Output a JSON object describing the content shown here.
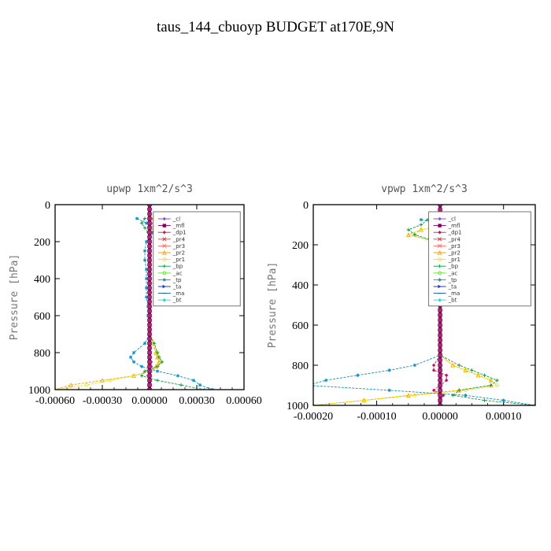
{
  "figure": {
    "title": "taus_144_cbuoyp  BUDGET at170E,9N"
  },
  "colors": {
    "_cl": "#8a4fd0",
    "_mfl": "#800060",
    "_dp1": "#c0105a",
    "_pr4": "#e03030",
    "_pr3": "#ff6666",
    "_pr2": "#f0a000",
    "_pr1": "#f0e000",
    "_bp": "#00a040",
    "_ac": "#60e030",
    "_tp": "#1090c0",
    "_ta": "#2040d0",
    "_ma": "#1050a0",
    "_bt": "#00e0e0"
  },
  "chart_data": [
    {
      "type": "line",
      "title": "upwp   1xm^2/s^3",
      "xlabel": "",
      "ylabel": "Pressure [hPa]",
      "xlim": [
        -0.0006,
        0.0006
      ],
      "ylim": [
        1000,
        0
      ],
      "xticks": [
        "-0.00060",
        "-0.00030",
        "0.00000",
        "0.00030",
        "0.00060"
      ],
      "xtick_values": [
        -0.0006,
        -0.0003,
        0,
        0.0003,
        0.0006
      ],
      "yticks": [
        "0",
        "200",
        "400",
        "600",
        "800",
        "1000"
      ],
      "ytick_values": [
        0,
        200,
        400,
        600,
        800,
        1000
      ],
      "grid": false,
      "legend_position": "top-right",
      "pressure": [
        75,
        100,
        125,
        150,
        200,
        250,
        300,
        350,
        400,
        450,
        500,
        550,
        600,
        650,
        700,
        750,
        800,
        825,
        850,
        875,
        900,
        925,
        950,
        975,
        1000
      ],
      "series": [
        {
          "name": "_cl",
          "values": [
            0,
            0,
            0,
            0,
            0,
            0,
            0,
            0,
            0,
            0,
            0,
            0,
            0,
            0,
            0,
            0,
            0,
            0,
            0,
            0,
            0,
            0,
            0,
            0,
            0
          ]
        },
        {
          "name": "_mfl",
          "values": [
            0,
            0,
            0,
            0,
            0,
            0,
            0,
            0,
            0,
            0,
            0,
            0,
            0,
            0,
            0,
            0,
            0,
            0,
            0,
            0,
            0,
            0,
            0,
            0,
            0
          ]
        },
        {
          "name": "_dp1",
          "values": [
            1e-05,
            1e-05,
            0,
            0,
            0,
            0,
            0,
            0,
            0,
            0,
            0,
            0,
            0,
            0,
            0,
            0,
            0,
            0,
            1e-05,
            1e-05,
            0,
            -1e-05,
            0,
            0,
            0
          ]
        },
        {
          "name": "_pr4",
          "values": [
            0,
            0,
            0,
            0,
            0,
            0,
            0,
            0,
            0,
            0,
            0,
            0,
            0,
            0,
            0,
            0,
            0,
            0,
            0,
            0,
            0,
            0,
            0,
            0,
            0
          ]
        },
        {
          "name": "_pr3",
          "values": [
            0,
            0,
            0,
            0,
            0,
            0,
            0,
            0,
            0,
            0,
            0,
            0,
            0,
            0,
            0,
            0,
            0,
            0,
            0,
            0,
            0,
            0,
            0,
            0,
            0
          ]
        },
        {
          "name": "_pr2",
          "values": [
            3e-05,
            4e-05,
            2e-05,
            1e-05,
            0,
            0,
            0,
            0,
            0,
            0,
            0,
            0,
            0,
            0,
            0,
            2e-05,
            4e-05,
            5e-05,
            6e-05,
            4e-05,
            0,
            -0.0001,
            -0.0003,
            -0.0005,
            -0.0006
          ]
        },
        {
          "name": "_pr1",
          "values": [
            3e-05,
            4e-05,
            2e-05,
            1e-05,
            0,
            0,
            0,
            0,
            0,
            0,
            0,
            0,
            0,
            0,
            0,
            2e-05,
            5e-05,
            6e-05,
            7e-05,
            5e-05,
            1e-05,
            -0.0001,
            -0.00025,
            -0.0004,
            -0.0006
          ]
        },
        {
          "name": "_bp",
          "values": [
            -3e-05,
            -5e-05,
            -3e-05,
            -1e-05,
            0,
            0,
            0,
            0,
            0,
            0,
            0,
            0,
            0,
            0,
            0,
            3e-05,
            5e-05,
            6e-05,
            8e-05,
            5e-05,
            -3e-05,
            -5e-05,
            5e-05,
            0.0002,
            0.00035
          ]
        },
        {
          "name": "_ac",
          "values": [
            0,
            0,
            0,
            0,
            0,
            0,
            0,
            0,
            0,
            0,
            0,
            0,
            0,
            0,
            0,
            0,
            0,
            0,
            0,
            0,
            0,
            0,
            0,
            0,
            0
          ]
        },
        {
          "name": "_tp",
          "values": [
            -8e-05,
            -2e-05,
            8e-05,
            2e-05,
            -2e-05,
            -3e-05,
            -3e-05,
            -2e-05,
            -2e-05,
            -2e-05,
            -2e-05,
            -1e-05,
            -1e-05,
            0,
            0,
            -3e-05,
            -0.0001,
            -0.00012,
            -0.0001,
            -5e-05,
            5e-05,
            0.00018,
            0.00028,
            0.00032,
            0.0004
          ]
        },
        {
          "name": "_ta",
          "values": [
            0,
            0,
            0,
            0,
            0,
            0,
            0,
            0,
            0,
            0,
            0,
            0,
            0,
            0,
            0,
            0,
            0,
            0,
            0,
            0,
            0,
            0,
            0,
            0,
            0
          ]
        },
        {
          "name": "_ma",
          "values": [
            0,
            0,
            0,
            0,
            0,
            0,
            0,
            0,
            0,
            0,
            0,
            0,
            0,
            0,
            0,
            0,
            0,
            0,
            0,
            0,
            0,
            0,
            0,
            0,
            0
          ]
        },
        {
          "name": "_bt",
          "values": [
            0,
            0,
            0,
            0,
            0,
            0,
            0,
            0,
            0,
            0,
            0,
            0,
            0,
            0,
            0,
            0,
            0,
            0,
            0,
            0,
            0,
            0,
            0,
            0,
            0
          ]
        }
      ]
    },
    {
      "type": "line",
      "title": "vpwp   1xm^2/s^3",
      "xlabel": "",
      "ylabel": "Pressure [hPa]",
      "xlim": [
        -0.0002,
        0.00015
      ],
      "ylim": [
        1000,
        0
      ],
      "xticks": [
        "-0.00020",
        "-0.00010",
        "0.00000",
        "0.00010"
      ],
      "xtick_values": [
        -0.0002,
        -0.0001,
        0,
        0.0001
      ],
      "yticks": [
        "0",
        "200",
        "400",
        "600",
        "800",
        "1000"
      ],
      "ytick_values": [
        0,
        200,
        400,
        600,
        800,
        1000
      ],
      "grid": false,
      "legend_position": "top-right",
      "pressure": [
        75,
        100,
        125,
        150,
        200,
        250,
        300,
        350,
        400,
        450,
        500,
        550,
        600,
        650,
        700,
        750,
        800,
        825,
        850,
        875,
        900,
        925,
        950,
        975,
        1000
      ],
      "series": [
        {
          "name": "_cl",
          "values": [
            0,
            0,
            0,
            0,
            0,
            0,
            0,
            0,
            0,
            0,
            0,
            0,
            0,
            0,
            0,
            0,
            0,
            0,
            0,
            0,
            0,
            0,
            0,
            0,
            0
          ]
        },
        {
          "name": "_mfl",
          "values": [
            0,
            0,
            0,
            0,
            0,
            0,
            0,
            0,
            0,
            0,
            0,
            0,
            0,
            0,
            0,
            0,
            0,
            0,
            0,
            0,
            0,
            0,
            0,
            0,
            0
          ]
        },
        {
          "name": "_dp1",
          "values": [
            -5e-06,
            1e-05,
            -1e-05,
            1e-05,
            -1e-05,
            0,
            0,
            0,
            0,
            0,
            0,
            0,
            0,
            0,
            0,
            0,
            -1e-05,
            -1e-05,
            1e-05,
            1e-05,
            0,
            -1e-05,
            5e-06,
            0,
            0
          ]
        },
        {
          "name": "_pr4",
          "values": [
            0,
            0,
            0,
            0,
            0,
            0,
            0,
            0,
            0,
            0,
            0,
            0,
            0,
            0,
            0,
            0,
            0,
            0,
            0,
            0,
            0,
            0,
            0,
            0,
            0
          ]
        },
        {
          "name": "_pr3",
          "values": [
            0,
            0,
            0,
            0,
            0,
            0,
            0,
            0,
            0,
            0,
            0,
            0,
            0,
            0,
            0,
            0,
            0,
            0,
            0,
            0,
            0,
            0,
            0,
            0,
            0
          ]
        },
        {
          "name": "_pr2",
          "values": [
            1e-05,
            2e-05,
            -3e-05,
            -5e-05,
            1e-05,
            0,
            0,
            0,
            0,
            0,
            0,
            0,
            0,
            0,
            0,
            0,
            2e-05,
            4e-05,
            6e-05,
            8e-05,
            8e-05,
            3e-05,
            -5e-05,
            -0.00012,
            -0.0002
          ]
        },
        {
          "name": "_pr1",
          "values": [
            1e-05,
            2e-05,
            -3e-05,
            -4e-05,
            1e-05,
            0,
            0,
            0,
            0,
            0,
            0,
            0,
            0,
            0,
            0,
            0,
            2e-05,
            4e-05,
            6e-05,
            8e-05,
            9e-05,
            4e-05,
            -4e-05,
            -0.00012,
            -0.0002
          ]
        },
        {
          "name": "_bp",
          "values": [
            -2e-05,
            -3e-05,
            -5e-05,
            -4e-05,
            1e-05,
            0,
            0,
            0,
            0,
            0,
            0,
            0,
            0,
            0,
            0,
            0,
            3e-05,
            5e-05,
            7e-05,
            9e-05,
            8e-05,
            3e-05,
            2e-05,
            7e-05,
            0.00015
          ]
        },
        {
          "name": "_ac",
          "values": [
            0,
            0,
            0,
            0,
            0,
            0,
            0,
            0,
            0,
            1e-05,
            0,
            0,
            0,
            0,
            0,
            0,
            0,
            0,
            0,
            0,
            0,
            0,
            0,
            0,
            0
          ]
        },
        {
          "name": "_tp",
          "values": [
            -3e-05,
            1e-05,
            4e-05,
            6e-05,
            1e-05,
            0,
            -1e-05,
            1e-05,
            0,
            0,
            0,
            0,
            0,
            0,
            0,
            0,
            -4e-05,
            -8e-05,
            -0.00013,
            -0.00018,
            -0.00021,
            -8e-05,
            4e-05,
            0.0001,
            0.00015
          ]
        },
        {
          "name": "_ta",
          "values": [
            0,
            0,
            0,
            0,
            0,
            0,
            0,
            0,
            0,
            0,
            0,
            0,
            0,
            0,
            0,
            0,
            0,
            0,
            0,
            0,
            0,
            0,
            0,
            0,
            0
          ]
        },
        {
          "name": "_ma",
          "values": [
            0,
            0,
            0,
            0,
            0,
            0,
            0,
            0,
            0,
            0,
            0,
            0,
            0,
            0,
            0,
            0,
            0,
            0,
            0,
            0,
            0,
            0,
            0,
            0,
            0
          ]
        },
        {
          "name": "_bt",
          "values": [
            0,
            0,
            0,
            0,
            0,
            0,
            0,
            0,
            0,
            0,
            0,
            0,
            0,
            0,
            0,
            0,
            0,
            0,
            0,
            0,
            0,
            0,
            0,
            0,
            0
          ]
        }
      ]
    }
  ]
}
